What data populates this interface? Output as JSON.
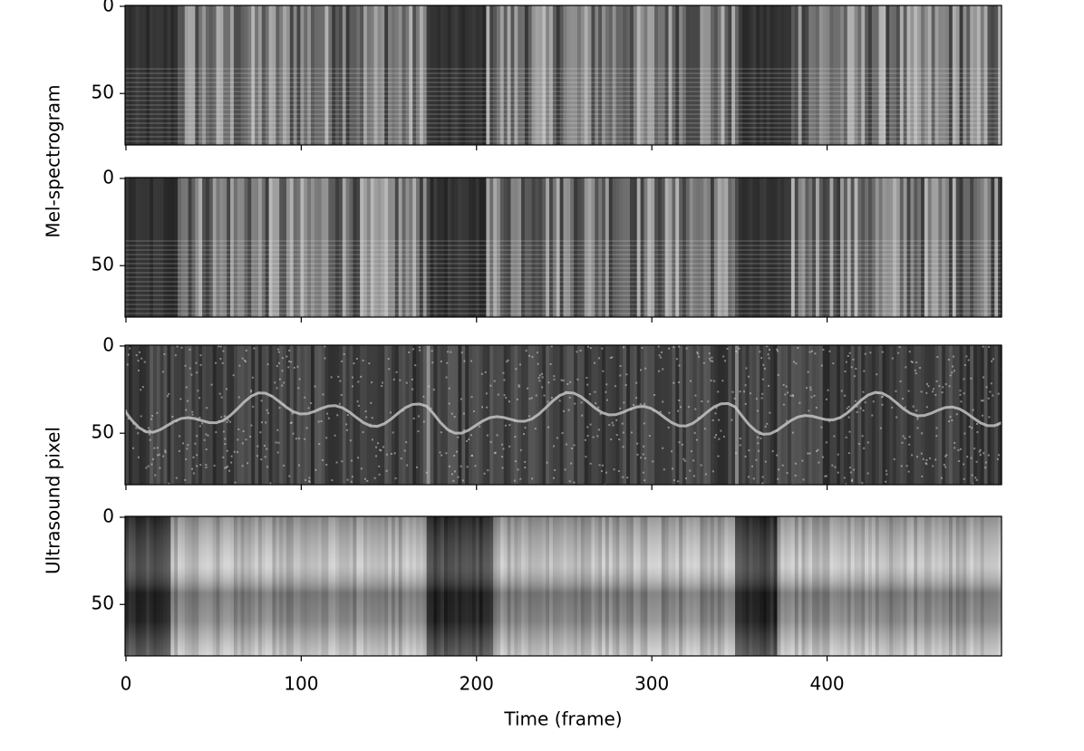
{
  "chart_data": [
    {
      "type": "image",
      "ylabel": "Mel-spectrogram",
      "xlim": [
        -0.5,
        499.5
      ],
      "ylim": [
        79.5,
        -0.5
      ],
      "xticks": [
        0,
        100,
        200,
        300,
        400
      ],
      "yticks": [
        0,
        50
      ]
    },
    {
      "type": "image",
      "xlim": [
        -0.5,
        499.5
      ],
      "ylim": [
        79.5,
        -0.5
      ],
      "xticks": [
        0,
        100,
        200,
        300,
        400
      ],
      "yticks": [
        0,
        50
      ]
    },
    {
      "type": "image",
      "ylabel": "Ultrasound pixel",
      "xlim": [
        -0.5,
        499.5
      ],
      "ylim": [
        79.5,
        -0.5
      ],
      "xticks": [
        0,
        100,
        200,
        300,
        400
      ],
      "yticks": [
        0,
        50
      ]
    },
    {
      "type": "image",
      "xlabel": "Time (frame)",
      "xlim": [
        -0.5,
        499.5
      ],
      "ylim": [
        79.5,
        -0.5
      ],
      "xticks": [
        0,
        100,
        200,
        300,
        400
      ],
      "yticks": [
        0,
        50
      ]
    }
  ]
}
